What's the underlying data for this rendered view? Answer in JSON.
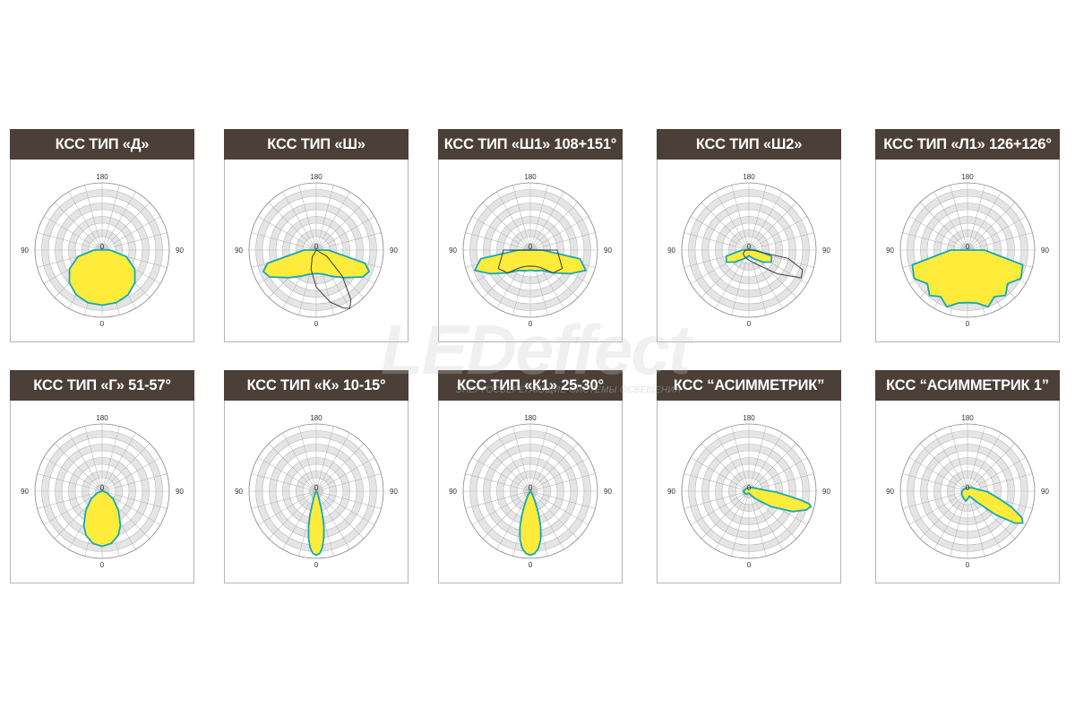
{
  "watermark": {
    "logo": "LEDeffect",
    "tagline": "ЭНЕРГОСБЕРЕГАЮЩИЕ СИСТЕМЫ ОСВЕЩЕНИЯ"
  },
  "colors": {
    "title_bg": "#4b3f37",
    "fill": "#ffec3a",
    "outline": "#16a7b6",
    "secondary_line": "#3a3a3a",
    "ring_shade": "#e6e6e6",
    "grid_line": "#b0b0b0"
  },
  "chart_data": [
    {
      "type": "polar",
      "title": "КСС ТИП «Д»",
      "tick_labels": {
        "top": "180",
        "left": "90",
        "right": "90",
        "bottom": "0",
        "center": "0"
      },
      "series": [
        {
          "angles_deg": [
            0,
            15,
            30,
            45,
            60,
            75,
            90,
            105,
            120,
            135,
            150,
            165,
            180
          ],
          "values": [
            0.82,
            0.81,
            0.77,
            0.69,
            0.56,
            0.37,
            0.12,
            0.02,
            0,
            0,
            0,
            0,
            0
          ]
        }
      ]
    },
    {
      "type": "polar",
      "title": "КСС ТИП «Ш»",
      "tick_labels": {
        "top": "180",
        "left": "90",
        "right": "90",
        "bottom": "0",
        "center": "0"
      },
      "series": [
        {
          "angles_deg": [
            -90,
            -75,
            -68,
            -60,
            -45,
            -30,
            -15,
            0,
            15,
            30,
            45,
            60,
            68,
            75,
            90
          ],
          "values": [
            0.18,
            0.75,
            0.85,
            0.8,
            0.58,
            0.45,
            0.37,
            0.35,
            0.37,
            0.45,
            0.58,
            0.8,
            0.85,
            0.75,
            0.18
          ]
        },
        {
          "line_only": true,
          "angles_deg": [
            -90,
            -30,
            -15,
            0,
            15,
            25,
            30,
            35,
            45,
            60,
            90
          ],
          "values": [
            0,
            0.12,
            0.3,
            0.55,
            0.8,
            0.95,
            1.0,
            0.9,
            0.55,
            0.18,
            0
          ]
        }
      ]
    },
    {
      "type": "polar",
      "title": "КСС ТИП «Ш1» 108+151°",
      "tick_labels": {
        "top": "180",
        "left": "90",
        "right": "90",
        "bottom": "0",
        "center": "0"
      },
      "series": [
        {
          "angles_deg": [
            -90,
            -80,
            -70,
            -60,
            -45,
            -30,
            -15,
            0,
            15,
            30,
            45,
            60,
            70,
            80,
            90
          ],
          "values": [
            0.18,
            0.75,
            0.88,
            0.7,
            0.48,
            0.35,
            0.32,
            0.3,
            0.32,
            0.35,
            0.48,
            0.7,
            0.88,
            0.75,
            0.18
          ]
        },
        {
          "line_only": true,
          "angles_deg": [
            -90,
            -60,
            -45,
            -30,
            -15,
            0,
            15,
            30,
            45,
            60,
            90
          ],
          "values": [
            0.4,
            0.55,
            0.48,
            0.3,
            0.25,
            0.24,
            0.25,
            0.3,
            0.48,
            0.55,
            0.4
          ]
        }
      ]
    },
    {
      "type": "polar",
      "title": "КСС ТИП «Ш2»",
      "tick_labels": {
        "top": "180",
        "left": "90",
        "right": "90",
        "bottom": "0",
        "center": "0"
      },
      "series": [
        {
          "angles_deg": [
            -90,
            -75,
            -62,
            -50,
            -30,
            -10,
            0,
            10,
            30,
            50,
            62,
            75,
            90
          ],
          "values": [
            0.1,
            0.35,
            0.38,
            0.28,
            0.15,
            0.1,
            0.08,
            0.1,
            0.15,
            0.28,
            0.38,
            0.35,
            0.1
          ]
        },
        {
          "line_only": true,
          "angles_deg": [
            -90,
            -60,
            -30,
            0,
            30,
            50,
            62,
            70,
            78,
            90
          ],
          "values": [
            0.05,
            0.1,
            0.12,
            0.15,
            0.25,
            0.55,
            0.88,
            0.85,
            0.6,
            0.05
          ]
        }
      ]
    },
    {
      "type": "polar",
      "title": "КСС ТИП «Л1» 126+126°",
      "tick_labels": {
        "top": "180",
        "left": "90",
        "right": "90",
        "bottom": "0",
        "center": "0"
      },
      "series": [
        {
          "angles_deg": [
            -90,
            -75,
            -62,
            -50,
            -40,
            -30,
            -20,
            -10,
            0,
            10,
            20,
            30,
            40,
            50,
            62,
            75,
            90
          ],
          "values": [
            0.25,
            0.85,
            0.9,
            0.78,
            0.88,
            0.8,
            0.9,
            0.8,
            0.78,
            0.8,
            0.9,
            0.8,
            0.88,
            0.78,
            0.9,
            0.85,
            0.25
          ]
        }
      ]
    },
    {
      "type": "polar",
      "title": "КСС ТИП «Г» 51-57°",
      "tick_labels": {
        "top": "180",
        "left": "90",
        "right": "90",
        "bottom": "0",
        "center": "0"
      },
      "series": [
        {
          "angles_deg": [
            0,
            10,
            20,
            28,
            40,
            55,
            70,
            90,
            120,
            180
          ],
          "values": [
            0.82,
            0.79,
            0.7,
            0.58,
            0.38,
            0.2,
            0.08,
            0.01,
            0,
            0
          ]
        }
      ]
    },
    {
      "type": "polar",
      "title": "КСС ТИП «К» 10-15°",
      "tick_labels": {
        "top": "180",
        "left": "90",
        "right": "90",
        "bottom": "0",
        "center": "0"
      },
      "series": [
        {
          "angles_deg": [
            0,
            3,
            6,
            9,
            12,
            15,
            20,
            30,
            45,
            90,
            180
          ],
          "values": [
            0.95,
            0.93,
            0.85,
            0.72,
            0.55,
            0.35,
            0.12,
            0.03,
            0,
            0,
            0
          ]
        }
      ]
    },
    {
      "type": "polar",
      "title": "КСС ТИП «К1» 25-30°",
      "tick_labels": {
        "top": "180",
        "left": "90",
        "right": "90",
        "bottom": "0",
        "center": "0"
      },
      "series": [
        {
          "angles_deg": [
            0,
            4,
            8,
            12,
            16,
            20,
            25,
            35,
            50,
            90,
            180
          ],
          "values": [
            0.95,
            0.93,
            0.86,
            0.74,
            0.56,
            0.36,
            0.15,
            0.04,
            0,
            0,
            0
          ]
        }
      ]
    },
    {
      "type": "polar",
      "title": "КСС  “АСИММЕТРИК”",
      "tick_labels": {
        "top": "180",
        "left": "90",
        "right": "90",
        "bottom": "0",
        "center": "0"
      },
      "asymmetric": true,
      "series": [
        {
          "angles_deg": [
            -30,
            -10,
            0,
            20,
            40,
            55,
            65,
            72,
            76,
            78,
            80,
            84,
            88,
            95,
            110,
            140,
            180,
            210,
            240,
            270,
            300,
            330
          ],
          "values": [
            0.04,
            0.03,
            0.03,
            0.05,
            0.15,
            0.4,
            0.72,
            0.9,
            0.95,
            0.92,
            0.8,
            0.55,
            0.4,
            0.22,
            0.12,
            0.07,
            0.05,
            0.05,
            0.06,
            0.08,
            0.07,
            0.05
          ]
        }
      ]
    },
    {
      "type": "polar",
      "title": "КСС  “АСИММЕТРИК 1”",
      "tick_labels": {
        "top": "180",
        "left": "90",
        "right": "90",
        "bottom": "0",
        "center": "0"
      },
      "asymmetric": true,
      "series": [
        {
          "angles_deg": [
            -30,
            -10,
            0,
            20,
            40,
            50,
            56,
            60,
            64,
            70,
            76,
            88,
            100,
            130,
            170,
            210,
            240,
            270,
            300,
            330
          ],
          "values": [
            0.12,
            0.15,
            0.12,
            0.08,
            0.2,
            0.55,
            0.85,
            0.95,
            0.9,
            0.7,
            0.5,
            0.3,
            0.15,
            0.08,
            0.05,
            0.05,
            0.06,
            0.08,
            0.1,
            0.12
          ]
        }
      ]
    }
  ]
}
